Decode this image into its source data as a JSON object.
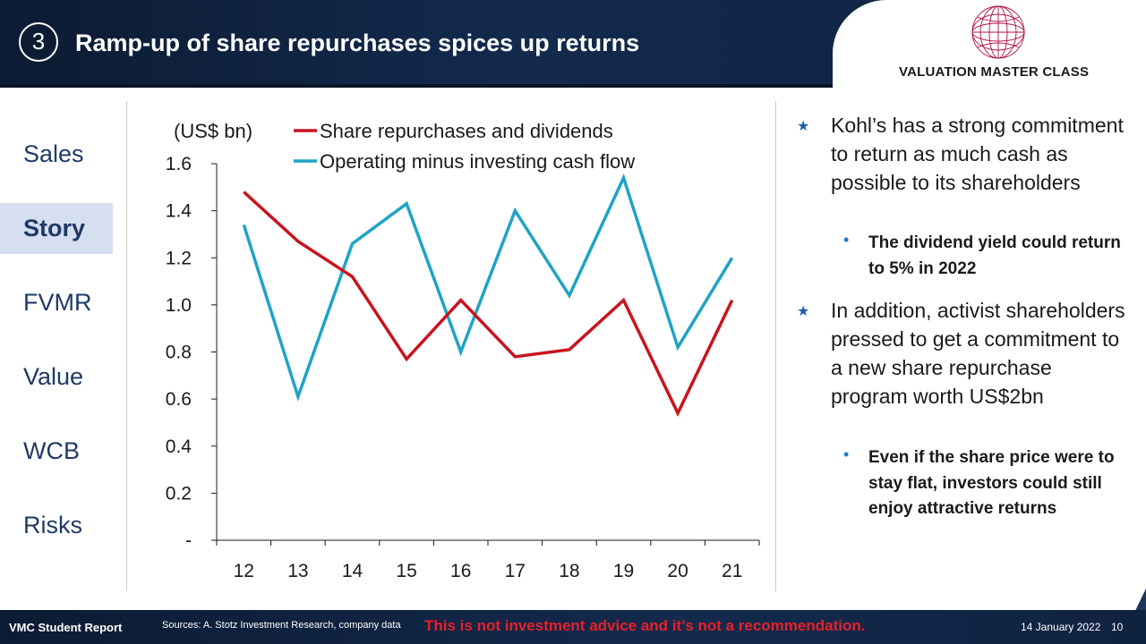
{
  "header": {
    "section_number": "3",
    "title": "Ramp-up of share repurchases spices up returns",
    "logo_text": "VALUATION MASTER CLASS"
  },
  "nav": {
    "items": [
      {
        "label": "Sales",
        "active": false
      },
      {
        "label": "Story",
        "active": true
      },
      {
        "label": "FVMR",
        "active": false
      },
      {
        "label": "Value",
        "active": false
      },
      {
        "label": "WCB",
        "active": false
      },
      {
        "label": "Risks",
        "active": false
      }
    ]
  },
  "chart_data": {
    "type": "line",
    "ylabel": "(US$ bn)",
    "categories": [
      "12",
      "13",
      "14",
      "15",
      "16",
      "17",
      "18",
      "19",
      "20",
      "21"
    ],
    "ylim": [
      0,
      1.6
    ],
    "yticks": [
      "-",
      "0.2",
      "0.4",
      "0.6",
      "0.8",
      "1.0",
      "1.2",
      "1.4",
      "1.6"
    ],
    "legend_position": "top",
    "grid": false,
    "series": [
      {
        "name": "Share repurchases and dividends",
        "color": "#c8141e",
        "values": [
          1.48,
          1.27,
          1.12,
          0.77,
          1.02,
          0.78,
          0.81,
          1.02,
          0.54,
          1.02
        ]
      },
      {
        "name": "Operating minus investing cash flow",
        "color": "#1fa3c6",
        "values": [
          1.34,
          0.61,
          1.26,
          1.43,
          0.8,
          1.4,
          1.04,
          1.54,
          0.82,
          1.2
        ]
      }
    ]
  },
  "bullets": {
    "b1": "Kohl’s has a strong commitment to return as much cash as possible to its shareholders",
    "b1_sub": "The dividend yield could return to 5% in 2022",
    "b2": "In addition, activist shareholders pressed to get a commitment to a new share repurchase program worth US$2bn",
    "b2_sub": "Even if the share price were to stay flat, investors could still enjoy attractive returns"
  },
  "footer": {
    "report_label": "VMC Student Report",
    "sources": "Sources: A. Stotz Investment Research, company data",
    "disclaimer": "This is not investment advice and it’s not a recommendation.",
    "date": "14 January 2022",
    "page": "10"
  },
  "colors": {
    "header_bg": "#132a4d",
    "accent_red": "#c8141e",
    "accent_blue": "#1fa3c6",
    "nav_text": "#1f3a66",
    "nav_active_bg": "#d6dff0"
  }
}
